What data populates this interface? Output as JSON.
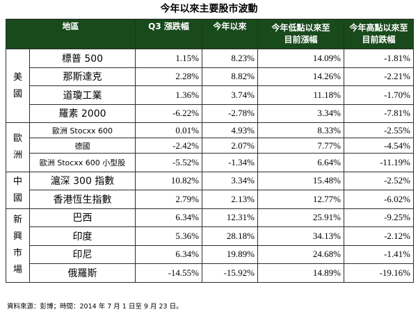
{
  "title": "今年以來主要股市波動",
  "headers": {
    "region": "地區",
    "q3": "Q3 漲跌幅",
    "ytd": "今年以來",
    "from_low_1": "今年低點以來至",
    "from_low_2": "目前漲幅",
    "from_high_1": "今年高點以來至",
    "from_high_2": "目前跌幅"
  },
  "groups": [
    {
      "label": "美國",
      "rows": [
        {
          "name": "標普 500",
          "q3": "1.15%",
          "ytd": "8.23%",
          "low": "14.09%",
          "high": "-1.81%"
        },
        {
          "name": "那斯達克",
          "q3": "2.28%",
          "ytd": "8.82%",
          "low": "14.26%",
          "high": "-2.21%"
        },
        {
          "name": "道瓊工業",
          "q3": "1.36%",
          "ytd": "3.74%",
          "low": "11.18%",
          "high": "-1.70%"
        },
        {
          "name": "羅素 2000",
          "q3": "-6.22%",
          "ytd": "-2.78%",
          "low": "3.34%",
          "high": "-7.81%"
        }
      ]
    },
    {
      "label": "歐洲",
      "rows": [
        {
          "name": "歐洲 Stocxx 600",
          "q3": "0.01%",
          "ytd": "4.93%",
          "low": "8.33%",
          "high": "-2.55%"
        },
        {
          "name": "德國",
          "q3": "-2.42%",
          "ytd": "2.07%",
          "low": "7.77%",
          "high": "-4.54%"
        },
        {
          "name": "歐洲 Stocxx 600 小型股",
          "q3": "-5.52%",
          "ytd": "-1.34%",
          "low": "6.64%",
          "high": "-11.19%"
        }
      ]
    },
    {
      "label": "中國",
      "rows": [
        {
          "name": "滬深 300 指數",
          "q3": "10.82%",
          "ytd": "3.34%",
          "low": "15.48%",
          "high": "-2.52%"
        },
        {
          "name": "香港恆生指數",
          "q3": "2.79%",
          "ytd": "2.13%",
          "low": "12.77%",
          "high": "-6.02%"
        }
      ]
    },
    {
      "label": "新興市場",
      "rows": [
        {
          "name": "巴西",
          "q3": "6.34%",
          "ytd": "12.31%",
          "low": "25.91%",
          "high": "-9.25%"
        },
        {
          "name": "印度",
          "q3": "5.36%",
          "ytd": "28.18%",
          "low": "34.13%",
          "high": "-2.12%"
        },
        {
          "name": "印尼",
          "q3": "6.34%",
          "ytd": "19.89%",
          "low": "24.68%",
          "high": "-1.41%"
        },
        {
          "name": "俄羅斯",
          "q3": "-14.55%",
          "ytd": "-15.92%",
          "low": "14.89%",
          "high": "-19.16%"
        }
      ]
    }
  ],
  "source": "資料來源：彭博；時間：2014 年 7 月 1 日至 9 月 23 日。"
}
